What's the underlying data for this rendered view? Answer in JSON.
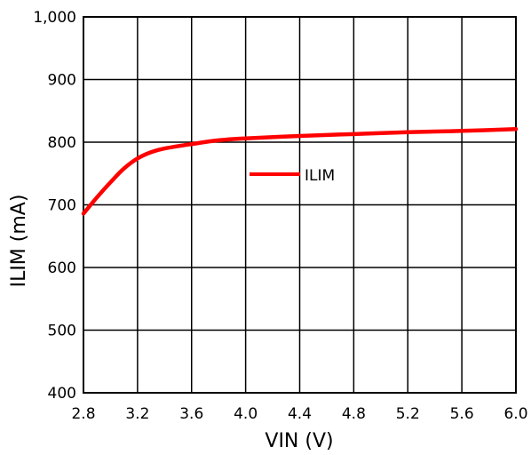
{
  "chart_data": {
    "type": "line",
    "title": "",
    "xlabel": "VIN (V)",
    "ylabel": "ILIM (mA)",
    "xlim": [
      2.8,
      6.0
    ],
    "ylim": [
      400,
      1000
    ],
    "x_ticks": [
      "2.8",
      "3.2",
      "3.6",
      "4.0",
      "4.4",
      "4.8",
      "5.2",
      "5.6",
      "6.0"
    ],
    "y_ticks": [
      "400",
      "500",
      "600",
      "700",
      "800",
      "900",
      "1,000"
    ],
    "grid": true,
    "legend_position": "center",
    "series": [
      {
        "name": "ILIM",
        "color": "#ff0000",
        "x": [
          2.8,
          2.9,
          3.0,
          3.1,
          3.2,
          3.3,
          3.4,
          3.6,
          3.8,
          4.0,
          4.4,
          4.8,
          5.2,
          5.6,
          6.0
        ],
        "y": [
          686,
          712,
          736,
          758,
          774,
          784,
          790,
          797,
          803,
          806,
          810,
          813,
          816,
          818,
          821
        ]
      }
    ]
  }
}
